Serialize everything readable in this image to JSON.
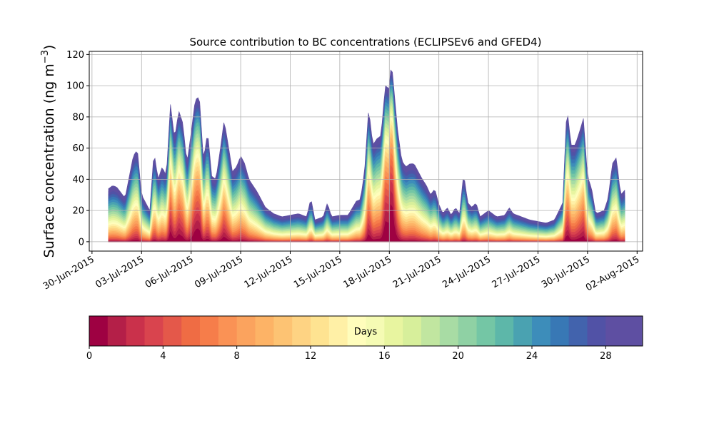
{
  "chart_data": {
    "type": "area",
    "title": "Source contribution to BC concentrations (ECLIPSEv6 and GFED4)",
    "ylabel_main": "Surface concentration (ng m",
    "ylabel_exp": "−3",
    "ylabel_end": ")",
    "xlabel": "",
    "ylim": [
      -6,
      122
    ],
    "yticks": [
      0,
      20,
      40,
      60,
      80,
      100,
      120
    ],
    "xlim": [
      "2015-06-29T20:00",
      "2015-08-02T08:00"
    ],
    "xticks": [
      {
        "date": "2015-06-30",
        "label": "30-Jun-2015"
      },
      {
        "date": "2015-07-03",
        "label": "03-Jul-2015"
      },
      {
        "date": "2015-07-06",
        "label": "06-Jul-2015"
      },
      {
        "date": "2015-07-09",
        "label": "09-Jul-2015"
      },
      {
        "date": "2015-07-12",
        "label": "12-Jul-2015"
      },
      {
        "date": "2015-07-15",
        "label": "15-Jul-2015"
      },
      {
        "date": "2015-07-18",
        "label": "18-Jul-2015"
      },
      {
        "date": "2015-07-21",
        "label": "21-Jul-2015"
      },
      {
        "date": "2015-07-24",
        "label": "24-Jul-2015"
      },
      {
        "date": "2015-07-27",
        "label": "27-Jul-2015"
      },
      {
        "date": "2015-07-30",
        "label": "30-Jul-2015"
      },
      {
        "date": "2015-08-02",
        "label": "02-Aug-2015"
      }
    ],
    "grid": true,
    "total_series": [
      [
        "2015-07-01T00:00",
        34
      ],
      [
        "2015-07-01T06:00",
        36
      ],
      [
        "2015-07-01T12:00",
        35
      ],
      [
        "2015-07-02T00:00",
        28
      ],
      [
        "2015-07-02T12:00",
        55
      ],
      [
        "2015-07-02T18:00",
        59
      ],
      [
        "2015-07-03T00:00",
        30
      ],
      [
        "2015-07-03T06:00",
        25
      ],
      [
        "2015-07-03T12:00",
        20
      ],
      [
        "2015-07-03T18:00",
        58
      ],
      [
        "2015-07-04T00:00",
        40
      ],
      [
        "2015-07-04T06:00",
        48
      ],
      [
        "2015-07-04T12:00",
        42
      ],
      [
        "2015-07-04T18:00",
        88
      ],
      [
        "2015-07-05T00:00",
        66
      ],
      [
        "2015-07-05T06:00",
        84
      ],
      [
        "2015-07-05T12:00",
        76
      ],
      [
        "2015-07-05T18:00",
        50
      ],
      [
        "2015-07-06T00:00",
        70
      ],
      [
        "2015-07-06T06:00",
        91
      ],
      [
        "2015-07-06T12:00",
        93
      ],
      [
        "2015-07-06T18:00",
        52
      ],
      [
        "2015-07-07T00:00",
        71
      ],
      [
        "2015-07-07T06:00",
        42
      ],
      [
        "2015-07-07T12:00",
        40
      ],
      [
        "2015-07-07T18:00",
        58
      ],
      [
        "2015-07-08T00:00",
        78
      ],
      [
        "2015-07-08T06:00",
        62
      ],
      [
        "2015-07-08T12:00",
        45
      ],
      [
        "2015-07-08T18:00",
        48
      ],
      [
        "2015-07-09T00:00",
        55
      ],
      [
        "2015-07-09T06:00",
        50
      ],
      [
        "2015-07-09T12:00",
        40
      ],
      [
        "2015-07-10T00:00",
        32
      ],
      [
        "2015-07-10T12:00",
        22
      ],
      [
        "2015-07-11T00:00",
        18
      ],
      [
        "2015-07-11T12:00",
        16
      ],
      [
        "2015-07-12T00:00",
        17
      ],
      [
        "2015-07-12T12:00",
        18
      ],
      [
        "2015-07-13T00:00",
        16
      ],
      [
        "2015-07-13T06:00",
        28
      ],
      [
        "2015-07-13T12:00",
        14
      ],
      [
        "2015-07-14T00:00",
        16
      ],
      [
        "2015-07-14T06:00",
        25
      ],
      [
        "2015-07-14T12:00",
        16
      ],
      [
        "2015-07-15T00:00",
        17
      ],
      [
        "2015-07-15T12:00",
        17
      ],
      [
        "2015-07-16T00:00",
        26
      ],
      [
        "2015-07-16T06:00",
        27
      ],
      [
        "2015-07-16T12:00",
        45
      ],
      [
        "2015-07-16T18:00",
        86
      ],
      [
        "2015-07-17T00:00",
        62
      ],
      [
        "2015-07-17T06:00",
        66
      ],
      [
        "2015-07-17T12:00",
        68
      ],
      [
        "2015-07-17T18:00",
        100
      ],
      [
        "2015-07-18T00:00",
        98
      ],
      [
        "2015-07-18T03:00",
        116
      ],
      [
        "2015-07-18T12:00",
        72
      ],
      [
        "2015-07-18T18:00",
        52
      ],
      [
        "2015-07-19T00:00",
        48
      ],
      [
        "2015-07-19T06:00",
        50
      ],
      [
        "2015-07-19T12:00",
        50
      ],
      [
        "2015-07-19T18:00",
        45
      ],
      [
        "2015-07-20T00:00",
        40
      ],
      [
        "2015-07-20T06:00",
        36
      ],
      [
        "2015-07-20T12:00",
        30
      ],
      [
        "2015-07-20T18:00",
        34
      ],
      [
        "2015-07-21T00:00",
        24
      ],
      [
        "2015-07-21T06:00",
        18
      ],
      [
        "2015-07-21T12:00",
        22
      ],
      [
        "2015-07-21T18:00",
        17
      ],
      [
        "2015-07-22T00:00",
        22
      ],
      [
        "2015-07-22T06:00",
        18
      ],
      [
        "2015-07-22T12:00",
        44
      ],
      [
        "2015-07-22T18:00",
        25
      ],
      [
        "2015-07-23T00:00",
        22
      ],
      [
        "2015-07-23T06:00",
        25
      ],
      [
        "2015-07-23T12:00",
        16
      ],
      [
        "2015-07-24T00:00",
        20
      ],
      [
        "2015-07-24T12:00",
        16
      ],
      [
        "2015-07-25T00:00",
        17
      ],
      [
        "2015-07-25T06:00",
        22
      ],
      [
        "2015-07-25T12:00",
        18
      ],
      [
        "2015-07-26T00:00",
        16
      ],
      [
        "2015-07-26T12:00",
        14
      ],
      [
        "2015-07-27T00:00",
        13
      ],
      [
        "2015-07-27T12:00",
        12
      ],
      [
        "2015-07-28T00:00",
        14
      ],
      [
        "2015-07-28T12:00",
        25
      ],
      [
        "2015-07-28T18:00",
        87
      ],
      [
        "2015-07-29T00:00",
        62
      ],
      [
        "2015-07-29T06:00",
        62
      ],
      [
        "2015-07-29T12:00",
        70
      ],
      [
        "2015-07-29T18:00",
        79
      ],
      [
        "2015-07-30T00:00",
        42
      ],
      [
        "2015-07-30T06:00",
        34
      ],
      [
        "2015-07-30T12:00",
        18
      ],
      [
        "2015-07-31T00:00",
        20
      ],
      [
        "2015-07-31T06:00",
        28
      ],
      [
        "2015-07-31T12:00",
        50
      ],
      [
        "2015-07-31T18:00",
        54
      ],
      [
        "2015-08-01T00:00",
        30
      ],
      [
        "2015-08-01T06:00",
        33
      ]
    ],
    "layers": 30,
    "colorbar": {
      "label": "Days",
      "range": [
        0,
        30
      ],
      "ticks": [
        "0",
        "4",
        "8",
        "12",
        "16",
        "20",
        "24",
        "28"
      ],
      "colors": [
        "#9e0142",
        "#b41f48",
        "#ca314b",
        "#d9444e",
        "#e4584a",
        "#ef6c44",
        "#f67d4a",
        "#fa9255",
        "#fba35e",
        "#fdb366",
        "#fdc373",
        "#fed383",
        "#fee391",
        "#fff0a6",
        "#fffdbc",
        "#f5fbb4",
        "#e8f5a0",
        "#d7ef9b",
        "#c1e6a0",
        "#a8dca4",
        "#8fd1a4",
        "#74c6a5",
        "#5db7a9",
        "#4aa2b1",
        "#3d8dba",
        "#3878b5",
        "#4263ad",
        "#5152a6",
        "#5e4fa2",
        "#5e4fa2"
      ]
    }
  }
}
